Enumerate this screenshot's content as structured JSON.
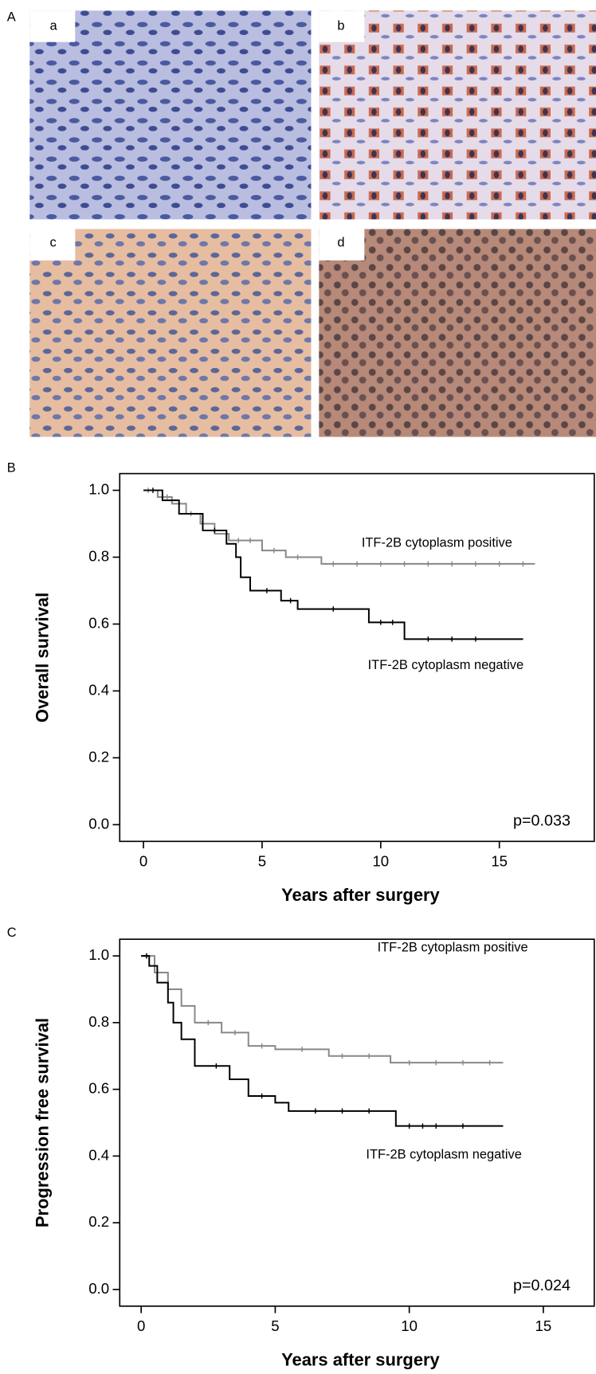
{
  "panels": {
    "labels": [
      "A",
      "B",
      "C"
    ],
    "images": [
      "a",
      "b",
      "c",
      "d"
    ]
  },
  "chart_data": [
    {
      "type": "line",
      "step": true,
      "x_label": "Years after surgery",
      "y_label": "Overall survival",
      "annotations": [
        "ITF-2B cytoplasm positive",
        "ITF-2B cytoplasm negative",
        "p=0.033"
      ],
      "xlim": [
        -1,
        19
      ],
      "ylim": [
        -0.05,
        1.05
      ],
      "xticks": [
        0,
        5,
        10,
        15
      ],
      "yticks": [
        {
          "value": 0,
          "label": "0.0"
        },
        {
          "value": 0.2,
          "label": "0.2"
        },
        {
          "value": 0.4,
          "label": "0.4"
        },
        {
          "value": 0.6,
          "label": "0.6"
        },
        {
          "value": 0.8,
          "label": "0.8"
        },
        {
          "value": 1,
          "label": "1.0"
        }
      ],
      "series": [
        {
          "name": "ITF-2B cytoplasm positive",
          "color": "#888888",
          "x": [
            0,
            0.6,
            1.2,
            1.8,
            2.4,
            3.0,
            3.6,
            5.0,
            6.0,
            7.5,
            16.5
          ],
          "values": [
            1.0,
            0.98,
            0.96,
            0.93,
            0.9,
            0.87,
            0.85,
            0.82,
            0.8,
            0.78,
            0.78
          ],
          "censored": [
            0.2,
            1.0,
            2.0,
            4.0,
            4.5,
            5.5,
            6.5,
            8,
            9,
            10,
            11,
            12,
            13,
            14,
            15,
            16
          ]
        },
        {
          "name": "ITF-2B cytoplasm negative",
          "color": "#000000",
          "x": [
            0,
            0.8,
            1.5,
            2.5,
            3.5,
            3.9,
            4.1,
            4.5,
            5.8,
            6.5,
            9.5,
            11.0,
            16.0
          ],
          "values": [
            1.0,
            0.97,
            0.93,
            0.88,
            0.84,
            0.8,
            0.74,
            0.7,
            0.67,
            0.645,
            0.605,
            0.555,
            0.555
          ],
          "censored": [
            0.4,
            3.0,
            5.2,
            6.2,
            8.0,
            10.0,
            10.5,
            12.0,
            13.0,
            14.0
          ]
        }
      ]
    },
    {
      "type": "line",
      "step": true,
      "x_label": "Years after surgery",
      "y_label": "Progression free survival",
      "annotations": [
        "ITF-2B cytoplasm positive",
        "ITF-2B cytoplasm negative",
        "p=0.024"
      ],
      "xlim": [
        -0.8,
        16.9
      ],
      "ylim": [
        -0.05,
        1.05
      ],
      "xticks": [
        0,
        5,
        10,
        15
      ],
      "yticks": [
        {
          "value": 0,
          "label": "0.0"
        },
        {
          "value": 0.2,
          "label": "0.2"
        },
        {
          "value": 0.4,
          "label": "0.4"
        },
        {
          "value": 0.6,
          "label": "0.6"
        },
        {
          "value": 0.8,
          "label": "0.8"
        },
        {
          "value": 1,
          "label": "1.0"
        }
      ],
      "series": [
        {
          "name": "ITF-2B cytoplasm positive",
          "color": "#888888",
          "x": [
            0,
            0.5,
            1.0,
            1.5,
            2.0,
            3.0,
            4.0,
            5.0,
            7.0,
            9.3,
            13.5
          ],
          "values": [
            1.0,
            0.95,
            0.9,
            0.85,
            0.8,
            0.77,
            0.73,
            0.72,
            0.7,
            0.68,
            0.68
          ],
          "censored": [
            0.2,
            2.5,
            3.5,
            4.5,
            6.0,
            7.5,
            8.5,
            10.0,
            11.0,
            12.0,
            13.0
          ]
        },
        {
          "name": "ITF-2B cytoplasm negative",
          "color": "#000000",
          "x": [
            0,
            0.3,
            0.6,
            1.0,
            1.2,
            1.5,
            2.0,
            3.3,
            4.0,
            5.0,
            5.5,
            9.5,
            13.5
          ],
          "values": [
            1.0,
            0.97,
            0.92,
            0.86,
            0.8,
            0.75,
            0.67,
            0.63,
            0.58,
            0.56,
            0.535,
            0.49,
            0.49
          ],
          "censored": [
            0.2,
            2.8,
            4.5,
            6.5,
            7.5,
            8.5,
            10.0,
            10.5,
            11.0,
            12.0
          ]
        }
      ]
    }
  ]
}
